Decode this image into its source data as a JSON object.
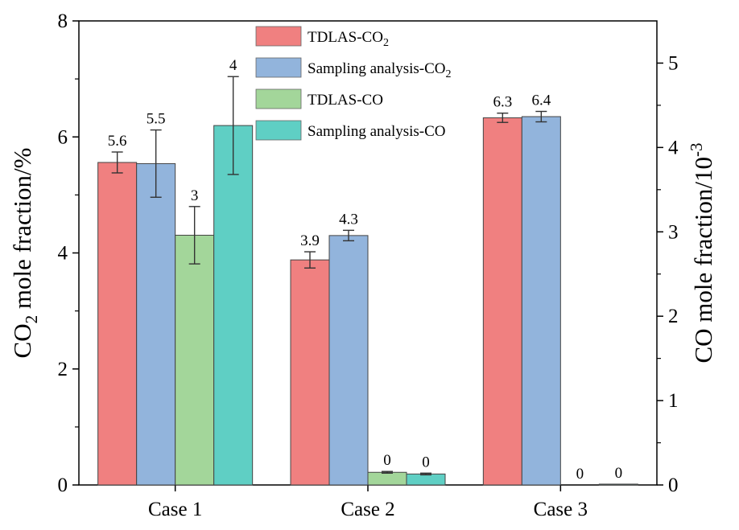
{
  "chart_data": {
    "type": "bar",
    "categories": [
      "Case 1",
      "Case 2",
      "Case 3"
    ],
    "left_axis": {
      "label_main": "CO",
      "label_sub": "2",
      "label_rest": " mole fraction/%",
      "ylim": [
        0,
        8
      ],
      "ticks": [
        0,
        2,
        4,
        6,
        8
      ]
    },
    "right_axis": {
      "label_main": "CO mole fraction/10",
      "label_sup": "-3",
      "ylim": [
        0,
        5.5
      ],
      "ticks": [
        0,
        1,
        2,
        3,
        4,
        5
      ]
    },
    "series": [
      {
        "name_main": "TDLAS-CO",
        "name_sub": "2",
        "axis": "left",
        "color": "#f08080",
        "values": [
          5.56,
          3.88,
          6.33
        ],
        "errors": [
          0.18,
          0.14,
          0.08
        ],
        "labels": [
          "5.6",
          "3.9",
          "6.3"
        ]
      },
      {
        "name_main": "Sampling analysis-CO",
        "name_sub": "2",
        "axis": "left",
        "color": "#92b4dc",
        "values": [
          5.54,
          4.3,
          6.35
        ],
        "errors": [
          0.58,
          0.09,
          0.09
        ],
        "labels": [
          "5.5",
          "4.3",
          "6.4"
        ]
      },
      {
        "name_main": "TDLAS-CO",
        "name_sub": "",
        "axis": "right",
        "color": "#a3d69a",
        "values": [
          2.96,
          0.15,
          0.0
        ],
        "errors": [
          0.34,
          0.01,
          0.0
        ],
        "labels": [
          "3",
          "0",
          "0"
        ]
      },
      {
        "name_main": "Sampling analysis-CO",
        "name_sub": "",
        "axis": "right",
        "color": "#5fcfc4",
        "values": [
          4.26,
          0.13,
          0.01
        ],
        "errors": [
          0.58,
          0.01,
          0.0
        ],
        "labels": [
          "4",
          "0",
          "0"
        ]
      }
    ],
    "legend_position": "top-center",
    "grid": false
  }
}
